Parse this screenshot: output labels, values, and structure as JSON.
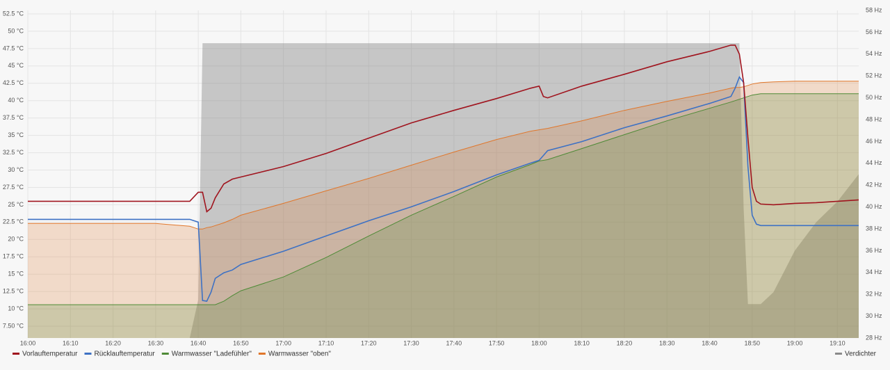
{
  "chart_data": {
    "type": "line",
    "x": [
      "16:00",
      "16:10",
      "16:20",
      "16:30",
      "16:38",
      "16:40",
      "16:41",
      "16:42",
      "16:43",
      "16:44",
      "16:46",
      "16:48",
      "16:50",
      "17:00",
      "17:10",
      "17:20",
      "17:30",
      "17:40",
      "17:50",
      "17:58",
      "18:00",
      "18:01",
      "18:02",
      "18:10",
      "18:20",
      "18:30",
      "18:40",
      "18:45",
      "18:46",
      "18:47",
      "18:48",
      "18:49",
      "18:50",
      "18:51",
      "18:52",
      "18:55",
      "19:00",
      "19:05",
      "19:10",
      "19:15"
    ],
    "xlim": [
      "16:00",
      "19:15"
    ],
    "xticks": [
      "16:00",
      "16:10",
      "16:20",
      "16:30",
      "16:40",
      "16:50",
      "17:00",
      "17:10",
      "17:20",
      "17:30",
      "17:40",
      "17:50",
      "18:00",
      "18:10",
      "18:20",
      "18:30",
      "18:40",
      "18:50",
      "19:00",
      "19:10"
    ],
    "ylim": [
      5.8,
      53
    ],
    "yticks": [
      {
        "value": 52.5,
        "label": "52.5 °C"
      },
      {
        "value": 50,
        "label": "50 °C"
      },
      {
        "value": 47.5,
        "label": "47.5 °C"
      },
      {
        "value": 45,
        "label": "45 °C"
      },
      {
        "value": 42.5,
        "label": "42.5 °C"
      },
      {
        "value": 40,
        "label": "40 °C"
      },
      {
        "value": 37.5,
        "label": "37.5 °C"
      },
      {
        "value": 35,
        "label": "35 °C"
      },
      {
        "value": 32.5,
        "label": "32.5 °C"
      },
      {
        "value": 30,
        "label": "30 °C"
      },
      {
        "value": 27.5,
        "label": "27.5 °C"
      },
      {
        "value": 25,
        "label": "25 °C"
      },
      {
        "value": 22.5,
        "label": "22.5 °C"
      },
      {
        "value": 20,
        "label": "20 °C"
      },
      {
        "value": 17.5,
        "label": "17.5 °C"
      },
      {
        "value": 15,
        "label": "15 °C"
      },
      {
        "value": 12.5,
        "label": "12.5 °C"
      },
      {
        "value": 10,
        "label": "10 °C"
      },
      {
        "value": 7.5,
        "label": "7.50 °C"
      }
    ],
    "y2lim": [
      28,
      58
    ],
    "y2ticks": [
      {
        "value": 58,
        "label": "58 Hz"
      },
      {
        "value": 56,
        "label": "56 Hz"
      },
      {
        "value": 54,
        "label": "54 Hz"
      },
      {
        "value": 52,
        "label": "52 Hz"
      },
      {
        "value": 50,
        "label": "50 Hz"
      },
      {
        "value": 48,
        "label": "48 Hz"
      },
      {
        "value": 46,
        "label": "46 Hz"
      },
      {
        "value": 44,
        "label": "44 Hz"
      },
      {
        "value": 42,
        "label": "42 Hz"
      },
      {
        "value": 40,
        "label": "40 Hz"
      },
      {
        "value": 38,
        "label": "38 Hz"
      },
      {
        "value": 36,
        "label": "36 Hz"
      },
      {
        "value": 34,
        "label": "34 Hz"
      },
      {
        "value": 32,
        "label": "32 Hz"
      },
      {
        "value": 30,
        "label": "30 Hz"
      },
      {
        "value": 28,
        "label": "28 Hz"
      }
    ],
    "grid": true,
    "series": [
      {
        "name": "Verdichter",
        "color": "#8a8a8a",
        "axis": "y2",
        "fill": true,
        "line": false,
        "values": [
          28,
          28,
          28,
          28,
          28,
          31.5,
          55,
          55,
          55,
          55,
          55,
          55,
          55,
          55,
          55,
          55,
          55,
          55,
          55,
          55,
          55,
          55,
          55,
          55,
          55,
          55,
          55,
          55,
          55,
          55,
          39.9,
          31.1,
          31.1,
          31.1,
          31.1,
          32.2,
          36,
          38.6,
          40.5,
          43
        ]
      },
      {
        "name": "Warmwasser \"oben\"",
        "color": "#e0762a",
        "fill": true,
        "line": true,
        "values": [
          22.3,
          22.3,
          22.3,
          22.3,
          21.9,
          21.5,
          21.5,
          21.7,
          21.8,
          22,
          22.4,
          22.9,
          23.5,
          25.2,
          27,
          28.8,
          30.7,
          32.6,
          34.4,
          35.6,
          35.8,
          35.9,
          36,
          37.1,
          38.6,
          39.9,
          41.1,
          41.8,
          41.9,
          41.9,
          42,
          42.2,
          42.4,
          42.5,
          42.6,
          42.7,
          42.8,
          42.8,
          42.8,
          42.8
        ]
      },
      {
        "name": "Warmwasser \"Ladefühler\"",
        "color": "#4e8a36",
        "fill": true,
        "line": true,
        "values": [
          10.6,
          10.6,
          10.6,
          10.6,
          10.6,
          10.6,
          10.6,
          10.6,
          10.6,
          10.6,
          11.1,
          11.9,
          12.6,
          14.6,
          17.4,
          20.5,
          23.5,
          26.2,
          29,
          30.8,
          31.3,
          31.4,
          31.5,
          33.1,
          35.1,
          37.1,
          38.9,
          39.8,
          40,
          40.2,
          40.4,
          40.6,
          40.8,
          40.9,
          41,
          41,
          41,
          41,
          41,
          41
        ]
      },
      {
        "name": "Rücklauftemperatur",
        "color": "#3d71c4",
        "fill": false,
        "line": true,
        "values": [
          22.9,
          22.9,
          22.9,
          22.9,
          22.9,
          22.5,
          11.2,
          11.1,
          12.4,
          14.4,
          15.2,
          15.6,
          16.4,
          18.3,
          20.5,
          22.7,
          24.7,
          26.9,
          29.3,
          31,
          31.4,
          32.1,
          32.8,
          34.1,
          36.1,
          37.8,
          39.6,
          40.6,
          41.8,
          43.4,
          42.6,
          30.5,
          23.5,
          22.2,
          22,
          22,
          22,
          22,
          22,
          22
        ]
      },
      {
        "name": "Vorlauftemperatur",
        "color": "#a0141e",
        "fill": false,
        "line": true,
        "values": [
          25.5,
          25.5,
          25.5,
          25.5,
          25.5,
          26.8,
          26.8,
          24,
          24.5,
          26,
          28,
          28.7,
          29,
          30.5,
          32.4,
          34.6,
          36.8,
          38.6,
          40.3,
          41.8,
          42.1,
          40.6,
          40.4,
          42.1,
          43.8,
          45.6,
          47.1,
          48,
          48,
          46.7,
          42.6,
          34.6,
          27.5,
          25.5,
          25.1,
          25,
          25.2,
          25.3,
          25.5,
          25.7
        ]
      }
    ]
  }
}
